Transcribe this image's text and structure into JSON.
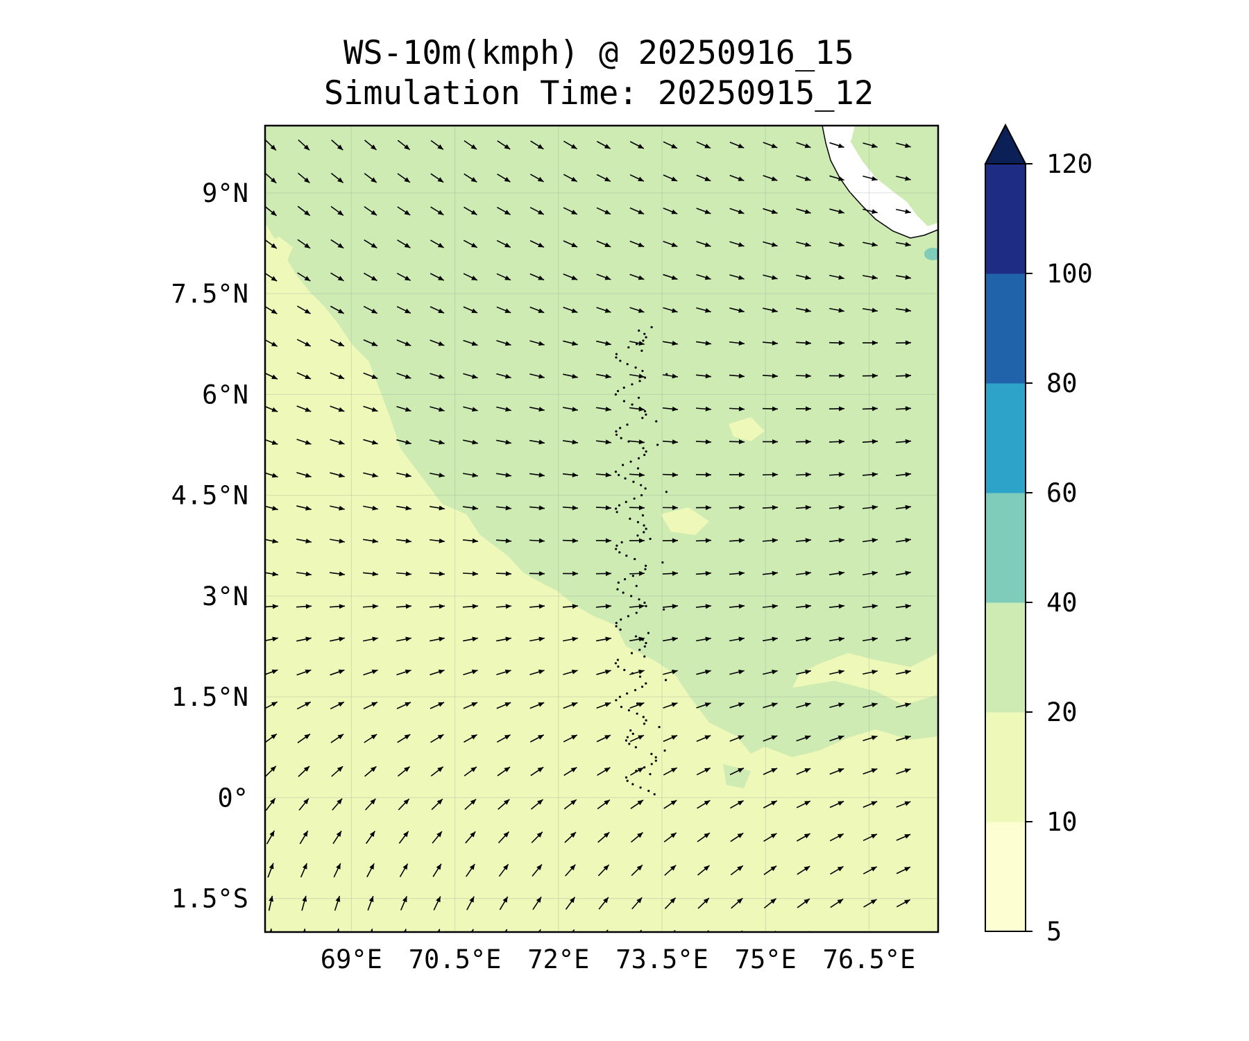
{
  "title": {
    "line1": "WS-10m(kmph) @ 20250916_15",
    "line2": "Simulation Time: 20250915_12"
  },
  "map": {
    "lon_range": [
      67.75,
      77.5
    ],
    "lat_range": [
      -2.0,
      10.0
    ],
    "lon_ticks": [
      {
        "value": 69.0,
        "label": "69°E"
      },
      {
        "value": 70.5,
        "label": "70.5°E"
      },
      {
        "value": 72.0,
        "label": "72°E"
      },
      {
        "value": 73.5,
        "label": "73.5°E"
      },
      {
        "value": 75.0,
        "label": "75°E"
      },
      {
        "value": 76.5,
        "label": "76.5°E"
      }
    ],
    "lat_ticks": [
      {
        "value": 9.0,
        "label": "9°N"
      },
      {
        "value": 7.5,
        "label": "7.5°N"
      },
      {
        "value": 6.0,
        "label": "6°N"
      },
      {
        "value": 4.5,
        "label": "4.5°N"
      },
      {
        "value": 3.0,
        "label": "3°N"
      },
      {
        "value": 1.5,
        "label": "1.5°N"
      },
      {
        "value": 0.0,
        "label": "0°"
      },
      {
        "value": -1.5,
        "label": "1.5°S"
      }
    ],
    "gridlines": true,
    "arrow_color": "#000000"
  },
  "colorbar": {
    "levels": [
      5,
      10,
      20,
      40,
      60,
      80,
      100,
      120
    ],
    "tick_labels": [
      "5",
      "10",
      "20",
      "40",
      "60",
      "80",
      "100",
      "120"
    ],
    "colors": [
      "#fdfed2",
      "#eef8b8",
      "#cdebb3",
      "#7fccbb",
      "#2ea3c9",
      "#2163aa",
      "#1f2c84"
    ],
    "extend_color": "#0c2058",
    "extend": "max"
  },
  "colors": {
    "light_speed": "#eef8b8",
    "moderate_speed": "#cdebb3",
    "land": "#ffffff",
    "frame": "#000000"
  }
}
